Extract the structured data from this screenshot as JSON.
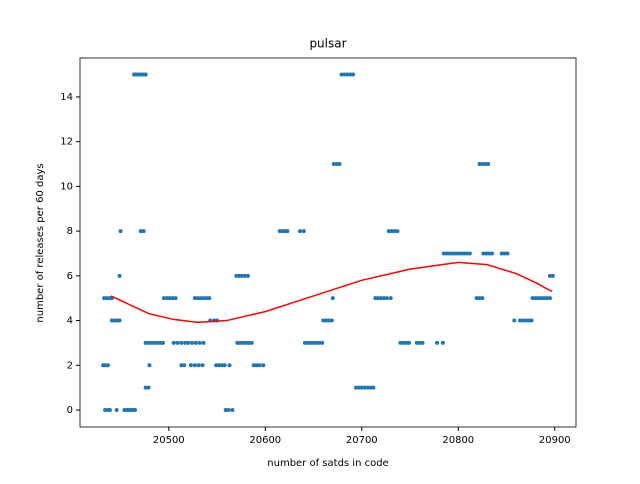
{
  "chart_data": {
    "type": "scatter",
    "title": "pulsar",
    "x_label": "number of satds in code",
    "y_label": "number of releases per 60 days",
    "xlim": [
      20408,
      20922
    ],
    "ylim": [
      -0.76,
      15.74
    ],
    "xticks": [
      20500,
      20600,
      20700,
      20800,
      20900
    ],
    "yticks": [
      0,
      2,
      4,
      6,
      8,
      10,
      12,
      14
    ],
    "grid": false,
    "series": [
      {
        "type": "scatter",
        "color": "#1f77b4",
        "x": [
          20432,
          20434,
          20437,
          20434,
          20437,
          20439,
          20433,
          20436,
          20439,
          20441,
          20441,
          20444,
          20447,
          20449,
          20446,
          20450,
          20449,
          20454,
          20457,
          20459,
          20461,
          20463,
          20465,
          20464,
          20466,
          20468,
          20470,
          20472,
          20474,
          20476,
          20471,
          20474,
          20476,
          20479,
          20476,
          20479,
          20482,
          20485,
          20488,
          20491,
          20480,
          20495,
          20498,
          20501,
          20504,
          20507,
          20494,
          20505,
          20509,
          20513,
          20517,
          20520,
          20524,
          20528,
          20532,
          20536,
          20513,
          20516,
          20523,
          20527,
          20531,
          20535,
          20527,
          20530,
          20533,
          20536,
          20539,
          20542,
          20543,
          20547,
          20550,
          20549,
          20552,
          20555,
          20558,
          20559,
          20562,
          20566,
          20563,
          20570,
          20573,
          20576,
          20579,
          20582,
          20571,
          20574,
          20577,
          20580,
          20583,
          20586,
          20588,
          20591,
          20594,
          20598,
          20615,
          20618,
          20621,
          20623,
          20636,
          20640,
          20641,
          20644,
          20647,
          20650,
          20653,
          20656,
          20659,
          20660,
          20663,
          20666,
          20669,
          20670,
          20671,
          20674,
          20677,
          20679,
          20682,
          20685,
          20688,
          20691,
          20694,
          20697,
          20700,
          20703,
          20706,
          20709,
          20712,
          20714,
          20717,
          20720,
          20723,
          20726,
          20730,
          20728,
          20731,
          20734,
          20737,
          20740,
          20743,
          20746,
          20749,
          20757,
          20760,
          20763,
          20778,
          20784,
          20785,
          20788,
          20791,
          20794,
          20797,
          20800,
          20803,
          20806,
          20809,
          20812,
          20819,
          20822,
          20825,
          20822,
          20825,
          20828,
          20831,
          20826,
          20829,
          20832,
          20835,
          20845,
          20848,
          20851,
          20858,
          20864,
          20867,
          20870,
          20873,
          20876,
          20877,
          20880,
          20883,
          20886,
          20889,
          20892,
          20895,
          20895,
          20898
        ],
        "values": [
          2,
          2,
          2,
          0,
          0,
          0,
          5,
          5,
          5,
          5,
          4,
          4,
          4,
          4,
          0,
          8,
          6,
          0,
          0,
          0,
          0,
          0,
          0,
          15,
          15,
          15,
          15,
          15,
          15,
          15,
          8,
          8,
          1,
          1,
          3,
          3,
          3,
          3,
          3,
          3,
          2,
          5,
          5,
          5,
          5,
          5,
          3,
          3,
          3,
          3,
          3,
          3,
          3,
          3,
          3,
          3,
          2,
          2,
          2,
          2,
          2,
          2,
          5,
          5,
          5,
          5,
          5,
          5,
          4,
          4,
          4,
          2,
          2,
          2,
          2,
          0,
          0,
          0,
          2,
          6,
          6,
          6,
          6,
          6,
          3,
          3,
          3,
          3,
          3,
          3,
          2,
          2,
          2,
          2,
          8,
          8,
          8,
          8,
          8,
          8,
          3,
          3,
          3,
          3,
          3,
          3,
          3,
          4,
          4,
          4,
          4,
          5,
          11,
          11,
          11,
          15,
          15,
          15,
          15,
          15,
          1,
          1,
          1,
          1,
          1,
          1,
          1,
          5,
          5,
          5,
          5,
          5,
          5,
          8,
          8,
          8,
          8,
          3,
          3,
          3,
          3,
          3,
          3,
          3,
          3,
          3,
          7,
          7,
          7,
          7,
          7,
          7,
          7,
          7,
          7,
          7,
          5,
          5,
          5,
          11,
          11,
          11,
          11,
          7,
          7,
          7,
          7,
          7,
          7,
          7,
          4,
          4,
          4,
          4,
          4,
          4,
          5,
          5,
          5,
          5,
          5,
          5,
          5,
          6,
          6
        ]
      },
      {
        "type": "line",
        "color": "#ff0000",
        "x": [
          20440,
          20460,
          20480,
          20505,
          20530,
          20560,
          20600,
          20650,
          20700,
          20750,
          20800,
          20830,
          20860,
          20880,
          20897
        ],
        "values": [
          5.1,
          4.7,
          4.3,
          4.05,
          3.92,
          4.0,
          4.4,
          5.1,
          5.8,
          6.3,
          6.6,
          6.5,
          6.1,
          5.7,
          5.3
        ]
      }
    ]
  }
}
